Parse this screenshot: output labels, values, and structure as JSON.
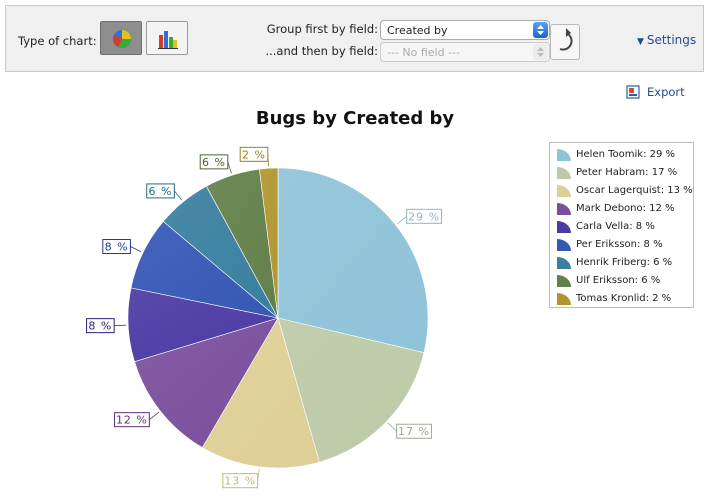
{
  "toolbar": {
    "type_label": "Type of chart:",
    "chart_types": [
      {
        "icon": "pie-chart-icon",
        "active": true
      },
      {
        "icon": "bar-chart-icon",
        "active": false
      }
    ],
    "group_first_label": "Group first by field:",
    "group_first_value": "Created by",
    "group_then_label": "...and then by field:",
    "group_then_value": "--- No field ---",
    "refresh_icon": "refresh-icon",
    "settings_label": "Settings"
  },
  "export_label": "Export",
  "chart_data": {
    "type": "pie",
    "title": "Bugs by Created by",
    "legend_position": "right",
    "categories": [
      "Helen Toomik",
      "Peter Habram",
      "Oscar Lagerquist",
      "Mark Debono",
      "Carla Vella",
      "Per Eriksson",
      "Henrik Friberg",
      "Ulf Eriksson",
      "Tomas Kronlid"
    ],
    "values": [
      29,
      17,
      13,
      12,
      8,
      8,
      6,
      6,
      2
    ],
    "data_labels": [
      "29 %",
      "17 %",
      "13 %",
      "12 %",
      "8 %",
      "8 %",
      "6 %",
      "6 %",
      "2 %"
    ],
    "legend_entries": [
      "Helen Toomik: 29 %",
      "Peter Habram: 17 %",
      "Oscar Lagerquist: 13 %",
      "Mark Debono: 12 %",
      "Carla Vella: 8 %",
      "Per Eriksson: 8 %",
      "Henrik Friberg: 6 %",
      "Ulf Eriksson: 6 %",
      "Tomas Kronlid: 2 %"
    ],
    "colors": [
      "#8fc3d9",
      "#bccaa8",
      "#decf96",
      "#7a4e9c",
      "#4b3aa4",
      "#3558b5",
      "#3a7fa0",
      "#62804a",
      "#b19630"
    ],
    "label_colors": [
      "#8fb6c4",
      "#9aa896",
      "#c4b480",
      "#5b2e7e",
      "#2c2278",
      "#1f3b8a",
      "#256b88",
      "#4b6536",
      "#9a8020"
    ]
  }
}
